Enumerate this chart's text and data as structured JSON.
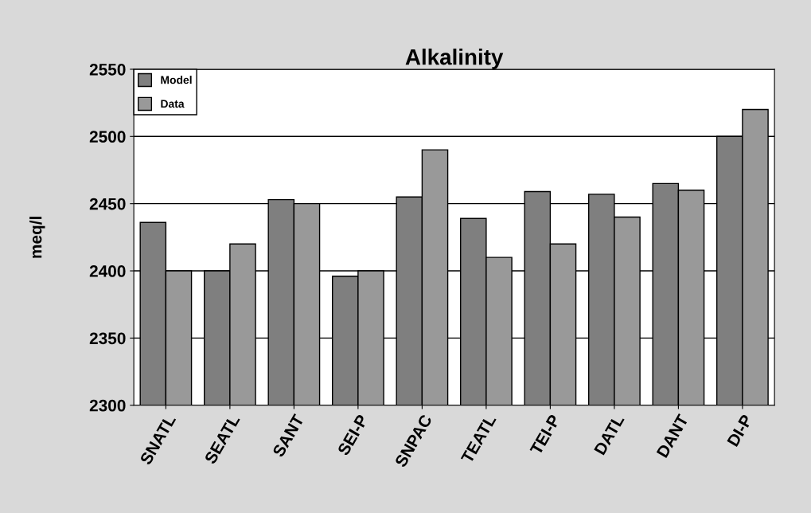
{
  "chart_data": {
    "type": "bar",
    "title": "Alkalinity",
    "ylabel": "meq/l",
    "categories": [
      "SNATL",
      "SEATL",
      "SANT",
      "SEI-P",
      "SNPAC",
      "TEATL",
      "TEI-P",
      "DATL",
      "DANT",
      "DI-P"
    ],
    "series": [
      {
        "name": "Model",
        "color": "#7f7f7f",
        "values": [
          2436,
          2400,
          2453,
          2396,
          2455,
          2439,
          2459,
          2457,
          2465,
          2500
        ]
      },
      {
        "name": "Data",
        "color": "#999999",
        "values": [
          2400,
          2420,
          2450,
          2400,
          2490,
          2410,
          2420,
          2440,
          2460,
          2520
        ]
      }
    ],
    "ylim": [
      2300,
      2550
    ],
    "yticks": [
      2300,
      2350,
      2400,
      2450,
      2500,
      2550
    ],
    "grid": "y",
    "legend": "top left"
  }
}
